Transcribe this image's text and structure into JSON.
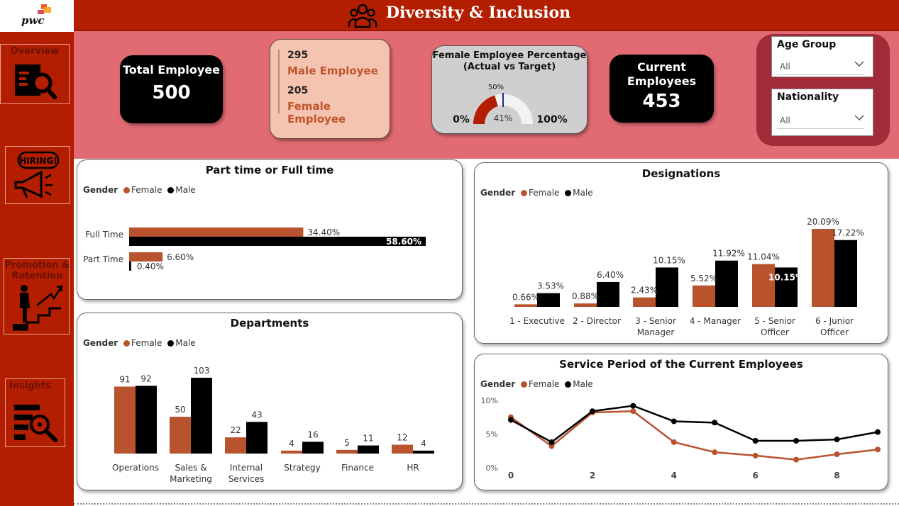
{
  "app": {
    "logo_text": "pwc",
    "title": "Diversity & Inclusion"
  },
  "colors": {
    "brand_red": "#b31d00",
    "female": "#b8532e",
    "male": "#000000",
    "band": "#e16a73"
  },
  "nav": [
    {
      "label": "Overview",
      "icon": "report-search-icon"
    },
    {
      "label": "",
      "icon": "hiring-megaphone-icon",
      "badge": "HIRING!"
    },
    {
      "label": "Promotion & Retention",
      "icon": "career-stairs-icon"
    },
    {
      "label": "Insights",
      "icon": "analytics-search-icon"
    }
  ],
  "kpis": {
    "total": {
      "label": "Total Employee",
      "value": "500"
    },
    "gender": {
      "male_count": "295",
      "male_label": "Male Employee",
      "female_count": "205",
      "female_label": "Female Employee"
    },
    "gauge": {
      "title_line1": "Female Employee Percentage",
      "title_line2": "(Actual vs Target)",
      "min_label": "0%",
      "max_label": "100%",
      "actual_label": "41%",
      "target_label": "50%",
      "actual": 0.41,
      "target": 0.5
    },
    "current": {
      "label_line1": "Current",
      "label_line2": "Employees",
      "value": "453"
    }
  },
  "filters": [
    {
      "label": "Age Group",
      "value": "All"
    },
    {
      "label": "Nationality",
      "value": "All"
    }
  ],
  "legend": {
    "title": "Gender",
    "female": "Female",
    "male": "Male"
  },
  "chart_data": [
    {
      "id": "part-full",
      "type": "bar",
      "orientation": "horizontal",
      "title": "Part time or Full time",
      "categories": [
        "Full Time",
        "Part Time"
      ],
      "series": [
        {
          "name": "Female",
          "values": [
            34.4,
            6.6
          ],
          "labels": [
            "34.40%",
            "6.60%"
          ]
        },
        {
          "name": "Male",
          "values": [
            58.6,
            0.4
          ],
          "labels": [
            "58.60%",
            "0.40%"
          ]
        }
      ],
      "legend_placement": "top-left"
    },
    {
      "id": "departments",
      "type": "bar",
      "title": "Departments",
      "categories": [
        "Operations",
        "Sales & Marketing",
        "Internal Services",
        "Strategy",
        "Finance",
        "HR"
      ],
      "series": [
        {
          "name": "Female",
          "values": [
            91,
            50,
            22,
            4,
            5,
            12
          ]
        },
        {
          "name": "Male",
          "values": [
            92,
            103,
            43,
            16,
            11,
            4
          ]
        }
      ],
      "legend_placement": "top-left"
    },
    {
      "id": "designations",
      "type": "bar",
      "title": "Designations",
      "categories": [
        "1 - Executive",
        "2 - Director",
        "3 - Senior Manager",
        "4 - Manager",
        "5 - Senior Officer",
        "6 - Junior Officer"
      ],
      "series": [
        {
          "name": "Female",
          "values": [
            0.66,
            0.88,
            2.43,
            5.52,
            11.04,
            20.09
          ],
          "labels": [
            "0.66%",
            "0.88%",
            "2.43%",
            "5.52%",
            "11.04%",
            "20.09%"
          ]
        },
        {
          "name": "Male",
          "values": [
            3.53,
            6.4,
            10.15,
            11.92,
            10.15,
            17.22
          ],
          "labels": [
            "3.53%",
            "6.40%",
            "10.15%",
            "11.92%",
            "10.15%",
            "17.22%"
          ]
        }
      ],
      "legend_placement": "top-left"
    },
    {
      "id": "service",
      "type": "line",
      "title": "Service Period of the Current Employees",
      "x": [
        0,
        1,
        2,
        3,
        4,
        5,
        6,
        7,
        8,
        9
      ],
      "x_ticks": [
        "0",
        "2",
        "4",
        "6",
        "8"
      ],
      "y_ticks": [
        "10%",
        "5%",
        "0%"
      ],
      "ylim": [
        0,
        10
      ],
      "series": [
        {
          "name": "Female",
          "values": [
            7.5,
            3.2,
            8.2,
            8.4,
            3.8,
            2.3,
            1.8,
            1.2,
            2.0,
            2.7
          ]
        },
        {
          "name": "Male",
          "values": [
            7.1,
            3.8,
            8.4,
            9.2,
            6.9,
            6.7,
            4.0,
            4.0,
            4.2,
            5.3
          ]
        }
      ],
      "legend_placement": "top-left"
    }
  ]
}
